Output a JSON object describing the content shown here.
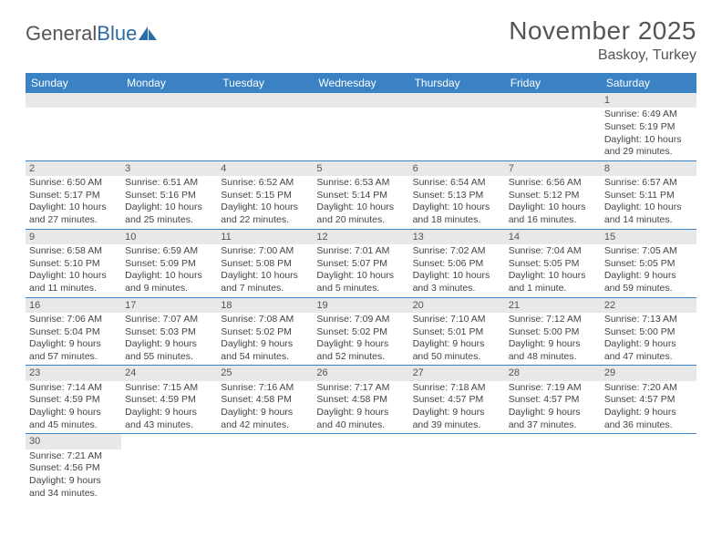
{
  "logo": {
    "part1": "General",
    "part2": "Blue"
  },
  "title": "November 2025",
  "location": "Baskoy, Turkey",
  "weekdays": [
    "Sunday",
    "Monday",
    "Tuesday",
    "Wednesday",
    "Thursday",
    "Friday",
    "Saturday"
  ],
  "colors": {
    "header_bg": "#3b82c4",
    "header_text": "#ffffff",
    "numbar_bg": "#e8e8e8",
    "rule": "#3b82c4",
    "text": "#444444",
    "title_text": "#555555"
  },
  "weeks": [
    [
      null,
      null,
      null,
      null,
      null,
      null,
      {
        "n": "1",
        "sunrise": "Sunrise: 6:49 AM",
        "sunset": "Sunset: 5:19 PM",
        "daylight": "Daylight: 10 hours and 29 minutes."
      }
    ],
    [
      {
        "n": "2",
        "sunrise": "Sunrise: 6:50 AM",
        "sunset": "Sunset: 5:17 PM",
        "daylight": "Daylight: 10 hours and 27 minutes."
      },
      {
        "n": "3",
        "sunrise": "Sunrise: 6:51 AM",
        "sunset": "Sunset: 5:16 PM",
        "daylight": "Daylight: 10 hours and 25 minutes."
      },
      {
        "n": "4",
        "sunrise": "Sunrise: 6:52 AM",
        "sunset": "Sunset: 5:15 PM",
        "daylight": "Daylight: 10 hours and 22 minutes."
      },
      {
        "n": "5",
        "sunrise": "Sunrise: 6:53 AM",
        "sunset": "Sunset: 5:14 PM",
        "daylight": "Daylight: 10 hours and 20 minutes."
      },
      {
        "n": "6",
        "sunrise": "Sunrise: 6:54 AM",
        "sunset": "Sunset: 5:13 PM",
        "daylight": "Daylight: 10 hours and 18 minutes."
      },
      {
        "n": "7",
        "sunrise": "Sunrise: 6:56 AM",
        "sunset": "Sunset: 5:12 PM",
        "daylight": "Daylight: 10 hours and 16 minutes."
      },
      {
        "n": "8",
        "sunrise": "Sunrise: 6:57 AM",
        "sunset": "Sunset: 5:11 PM",
        "daylight": "Daylight: 10 hours and 14 minutes."
      }
    ],
    [
      {
        "n": "9",
        "sunrise": "Sunrise: 6:58 AM",
        "sunset": "Sunset: 5:10 PM",
        "daylight": "Daylight: 10 hours and 11 minutes."
      },
      {
        "n": "10",
        "sunrise": "Sunrise: 6:59 AM",
        "sunset": "Sunset: 5:09 PM",
        "daylight": "Daylight: 10 hours and 9 minutes."
      },
      {
        "n": "11",
        "sunrise": "Sunrise: 7:00 AM",
        "sunset": "Sunset: 5:08 PM",
        "daylight": "Daylight: 10 hours and 7 minutes."
      },
      {
        "n": "12",
        "sunrise": "Sunrise: 7:01 AM",
        "sunset": "Sunset: 5:07 PM",
        "daylight": "Daylight: 10 hours and 5 minutes."
      },
      {
        "n": "13",
        "sunrise": "Sunrise: 7:02 AM",
        "sunset": "Sunset: 5:06 PM",
        "daylight": "Daylight: 10 hours and 3 minutes."
      },
      {
        "n": "14",
        "sunrise": "Sunrise: 7:04 AM",
        "sunset": "Sunset: 5:05 PM",
        "daylight": "Daylight: 10 hours and 1 minute."
      },
      {
        "n": "15",
        "sunrise": "Sunrise: 7:05 AM",
        "sunset": "Sunset: 5:05 PM",
        "daylight": "Daylight: 9 hours and 59 minutes."
      }
    ],
    [
      {
        "n": "16",
        "sunrise": "Sunrise: 7:06 AM",
        "sunset": "Sunset: 5:04 PM",
        "daylight": "Daylight: 9 hours and 57 minutes."
      },
      {
        "n": "17",
        "sunrise": "Sunrise: 7:07 AM",
        "sunset": "Sunset: 5:03 PM",
        "daylight": "Daylight: 9 hours and 55 minutes."
      },
      {
        "n": "18",
        "sunrise": "Sunrise: 7:08 AM",
        "sunset": "Sunset: 5:02 PM",
        "daylight": "Daylight: 9 hours and 54 minutes."
      },
      {
        "n": "19",
        "sunrise": "Sunrise: 7:09 AM",
        "sunset": "Sunset: 5:02 PM",
        "daylight": "Daylight: 9 hours and 52 minutes."
      },
      {
        "n": "20",
        "sunrise": "Sunrise: 7:10 AM",
        "sunset": "Sunset: 5:01 PM",
        "daylight": "Daylight: 9 hours and 50 minutes."
      },
      {
        "n": "21",
        "sunrise": "Sunrise: 7:12 AM",
        "sunset": "Sunset: 5:00 PM",
        "daylight": "Daylight: 9 hours and 48 minutes."
      },
      {
        "n": "22",
        "sunrise": "Sunrise: 7:13 AM",
        "sunset": "Sunset: 5:00 PM",
        "daylight": "Daylight: 9 hours and 47 minutes."
      }
    ],
    [
      {
        "n": "23",
        "sunrise": "Sunrise: 7:14 AM",
        "sunset": "Sunset: 4:59 PM",
        "daylight": "Daylight: 9 hours and 45 minutes."
      },
      {
        "n": "24",
        "sunrise": "Sunrise: 7:15 AM",
        "sunset": "Sunset: 4:59 PM",
        "daylight": "Daylight: 9 hours and 43 minutes."
      },
      {
        "n": "25",
        "sunrise": "Sunrise: 7:16 AM",
        "sunset": "Sunset: 4:58 PM",
        "daylight": "Daylight: 9 hours and 42 minutes."
      },
      {
        "n": "26",
        "sunrise": "Sunrise: 7:17 AM",
        "sunset": "Sunset: 4:58 PM",
        "daylight": "Daylight: 9 hours and 40 minutes."
      },
      {
        "n": "27",
        "sunrise": "Sunrise: 7:18 AM",
        "sunset": "Sunset: 4:57 PM",
        "daylight": "Daylight: 9 hours and 39 minutes."
      },
      {
        "n": "28",
        "sunrise": "Sunrise: 7:19 AM",
        "sunset": "Sunset: 4:57 PM",
        "daylight": "Daylight: 9 hours and 37 minutes."
      },
      {
        "n": "29",
        "sunrise": "Sunrise: 7:20 AM",
        "sunset": "Sunset: 4:57 PM",
        "daylight": "Daylight: 9 hours and 36 minutes."
      }
    ],
    [
      {
        "n": "30",
        "sunrise": "Sunrise: 7:21 AM",
        "sunset": "Sunset: 4:56 PM",
        "daylight": "Daylight: 9 hours and 34 minutes."
      },
      null,
      null,
      null,
      null,
      null,
      null
    ]
  ]
}
